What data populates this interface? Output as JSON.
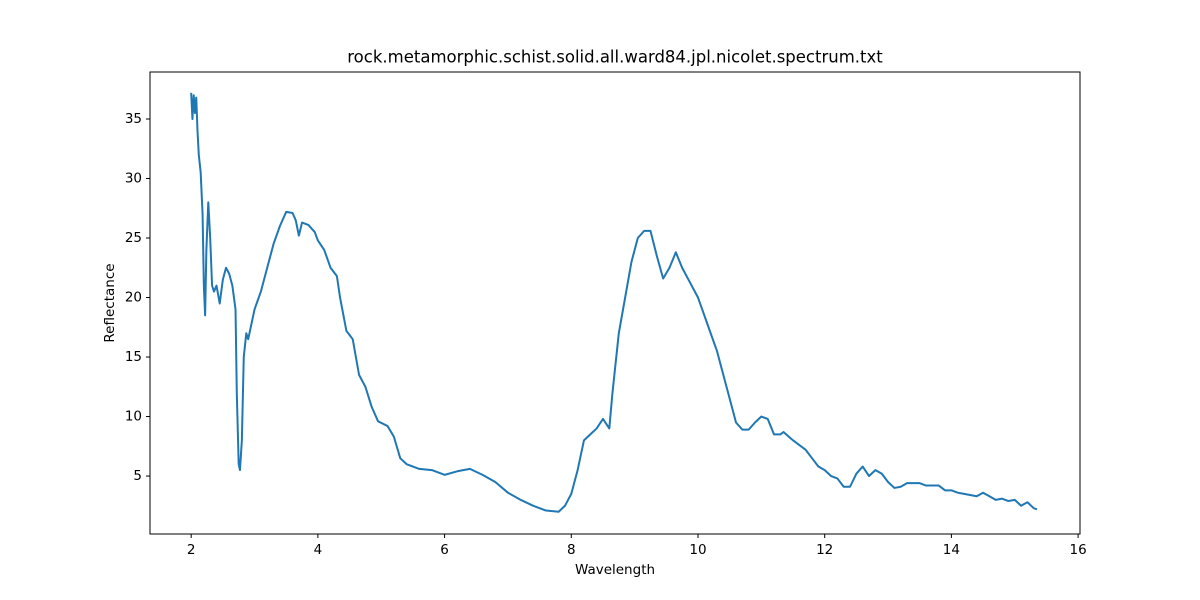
{
  "chart_data": {
    "type": "line",
    "title": "rock.metamorphic.schist.solid.all.ward84.jpl.nicolet.spectrum.txt",
    "x_label": "Wavelength",
    "y_label": "Reflectance",
    "xlim": [
      1.35,
      16.03
    ],
    "ylim": [
      0.13,
      38.95
    ],
    "xticks": [
      2,
      4,
      6,
      8,
      10,
      12,
      14,
      16
    ],
    "yticks": [
      5,
      10,
      15,
      20,
      25,
      30,
      35
    ],
    "grid": false,
    "series": [
      {
        "name": "Reflectance",
        "color": "#1f77b4",
        "x": [
          2.0,
          2.02,
          2.04,
          2.06,
          2.08,
          2.1,
          2.12,
          2.15,
          2.18,
          2.2,
          2.22,
          2.24,
          2.27,
          2.3,
          2.33,
          2.36,
          2.4,
          2.45,
          2.5,
          2.55,
          2.6,
          2.65,
          2.7,
          2.72,
          2.75,
          2.77,
          2.8,
          2.83,
          2.87,
          2.9,
          3.0,
          3.1,
          3.2,
          3.3,
          3.4,
          3.5,
          3.6,
          3.65,
          3.7,
          3.75,
          3.85,
          3.95,
          4.0,
          4.1,
          4.2,
          4.3,
          4.35,
          4.45,
          4.55,
          4.65,
          4.75,
          4.85,
          4.95,
          5.1,
          5.2,
          5.3,
          5.4,
          5.6,
          5.8,
          6.0,
          6.2,
          6.4,
          6.6,
          6.8,
          7.0,
          7.2,
          7.4,
          7.6,
          7.8,
          7.9,
          8.0,
          8.1,
          8.2,
          8.3,
          8.4,
          8.5,
          8.6,
          8.65,
          8.75,
          8.85,
          8.95,
          9.05,
          9.15,
          9.25,
          9.35,
          9.45,
          9.55,
          9.65,
          9.75,
          9.85,
          10.0,
          10.1,
          10.2,
          10.3,
          10.4,
          10.5,
          10.6,
          10.7,
          10.8,
          10.9,
          11.0,
          11.1,
          11.2,
          11.3,
          11.35,
          11.5,
          11.6,
          11.7,
          11.8,
          11.9,
          12.0,
          12.1,
          12.2,
          12.3,
          12.4,
          12.5,
          12.6,
          12.7,
          12.8,
          12.9,
          13.0,
          13.1,
          13.2,
          13.3,
          13.5,
          13.6,
          13.8,
          13.9,
          14.0,
          14.1,
          14.2,
          14.4,
          14.5,
          14.6,
          14.7,
          14.8,
          14.9,
          15.0,
          15.1,
          15.2,
          15.3,
          15.35
        ],
        "values": [
          37.2,
          35,
          37,
          35.5,
          36.8,
          34,
          32,
          30.5,
          27,
          21,
          18.5,
          24,
          28,
          25,
          21,
          20.5,
          21,
          19.5,
          21.5,
          22.5,
          22,
          21,
          19,
          12,
          6,
          5.5,
          8,
          15,
          17,
          16.5,
          19,
          20.5,
          22.5,
          24.5,
          26,
          27.2,
          27.1,
          26.5,
          25.2,
          26.3,
          26.1,
          25.5,
          24.8,
          24,
          22.5,
          21.8,
          20,
          17.2,
          16.5,
          13.5,
          12.5,
          10.8,
          9.6,
          9.2,
          8.3,
          6.5,
          6,
          5.6,
          5.5,
          5.1,
          5.4,
          5.6,
          5.1,
          4.5,
          3.6,
          3.0,
          2.5,
          2.1,
          2.0,
          2.5,
          3.5,
          5.5,
          8,
          8.5,
          9,
          9.8,
          9,
          12,
          17,
          20,
          23,
          25,
          25.6,
          25.6,
          23.5,
          21.6,
          22.5,
          23.8,
          22.5,
          21.5,
          20,
          18.5,
          17,
          15.5,
          13.5,
          11.5,
          9.5,
          8.9,
          8.9,
          9.5,
          10,
          9.8,
          8.5,
          8.5,
          8.7,
          8.0,
          7.6,
          7.2,
          6.5,
          5.8,
          5.5,
          5.0,
          4.8,
          4.1,
          4.1,
          5.2,
          5.8,
          5.0,
          5.5,
          5.2,
          4.5,
          4.0,
          4.1,
          4.4,
          4.4,
          4.2,
          4.2,
          3.8,
          3.8,
          3.6,
          3.5,
          3.3,
          3.6,
          3.3,
          3.0,
          3.1,
          2.9,
          3.0,
          2.5,
          2.8,
          2.3,
          2.2
        ]
      }
    ]
  }
}
